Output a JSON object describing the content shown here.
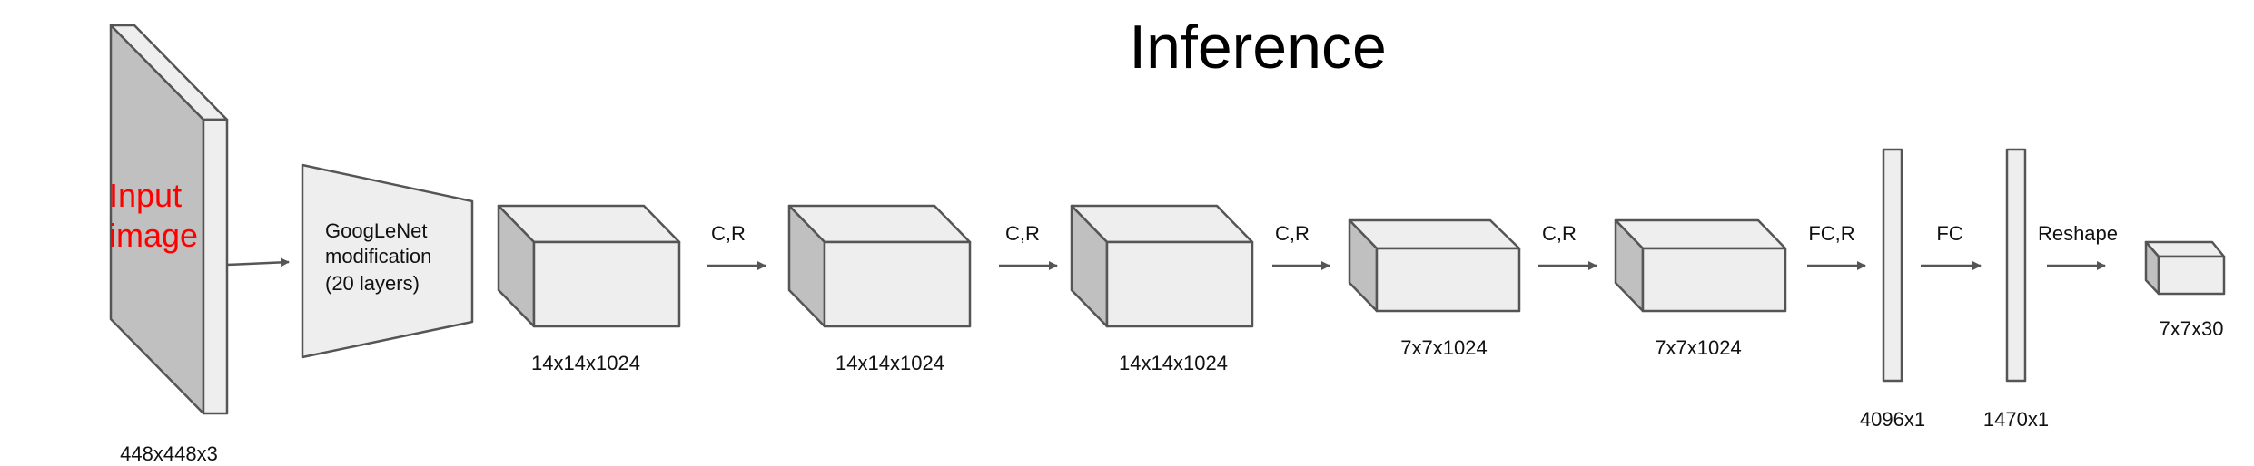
{
  "title": "Inference",
  "input": {
    "label_line1": "Input",
    "label_line2": "image",
    "size": "448x448x3"
  },
  "googlenet": {
    "line1": "GoogLeNet",
    "line2": "modification",
    "line3": "(20 layers)"
  },
  "blocks": [
    {
      "size": "14x14x1024",
      "op": "C,R"
    },
    {
      "size": "14x14x1024",
      "op": "C,R"
    },
    {
      "size": "14x14x1024",
      "op": "C,R"
    },
    {
      "size": "7x7x1024",
      "op": "C,R"
    },
    {
      "size": "7x7x1024",
      "op": "FC,R"
    }
  ],
  "fc": [
    {
      "size": "4096x1",
      "op": "FC"
    },
    {
      "size": "1470x1",
      "op": "Reshape"
    }
  ],
  "output": {
    "size": "7x7x30"
  },
  "colors": {
    "front": "#eeeeee",
    "top": "#eeeeee",
    "side": "#c0c0c0",
    "stroke": "#555555",
    "input_text": "#ff0000"
  }
}
